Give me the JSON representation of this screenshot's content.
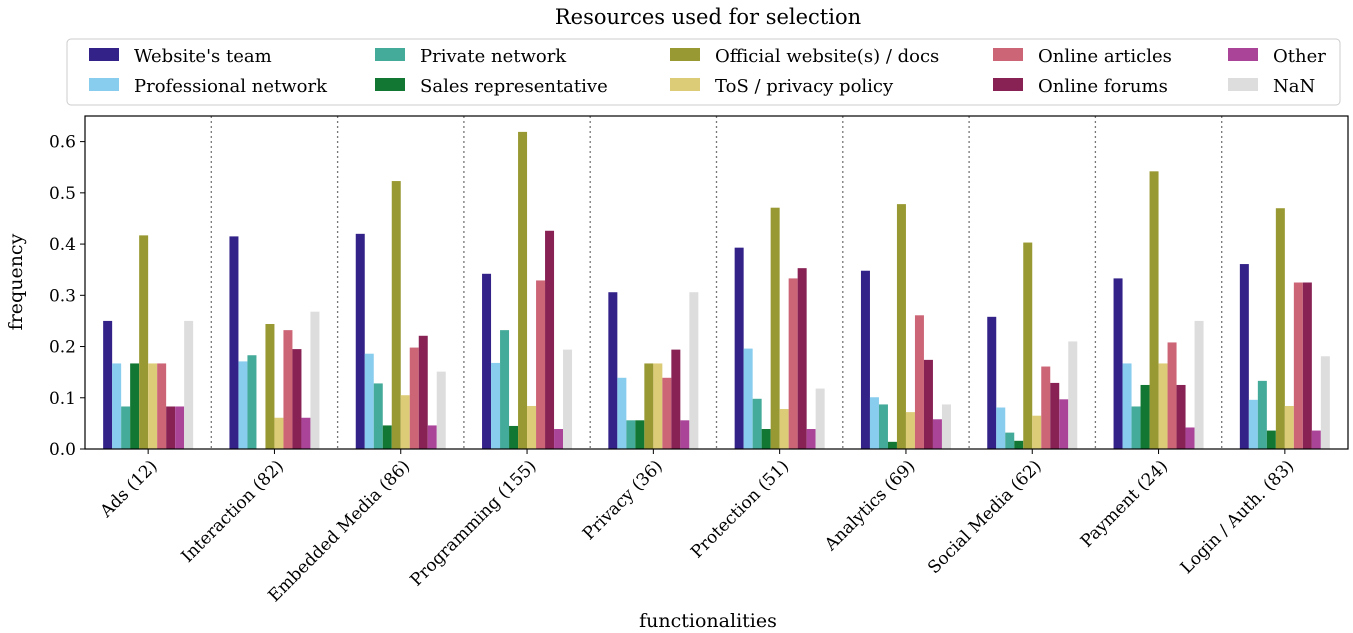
{
  "chart_data": {
    "type": "bar",
    "title": "Resources used for selection",
    "xlabel": "functionalities",
    "ylabel": "frequency",
    "ylim": [
      0,
      0.65
    ],
    "yticks": [
      "0.0",
      "0.1",
      "0.2",
      "0.3",
      "0.4",
      "0.5",
      "0.6"
    ],
    "grid": false,
    "legend_position": "top",
    "categories": [
      "Ads (12)",
      "Interaction (82)",
      "Embedded Media (86)",
      "Programming (155)",
      "Privacy (36)",
      "Protection (51)",
      "Analytics (69)",
      "Social Media (62)",
      "Payment (24)",
      "Login / Auth. (83)"
    ],
    "series": [
      {
        "name": "Website's team",
        "color": "#332288",
        "values": [
          0.25,
          0.415,
          0.42,
          0.342,
          0.306,
          0.393,
          0.348,
          0.258,
          0.333,
          0.361
        ]
      },
      {
        "name": "Professional network",
        "color": "#88ccee",
        "values": [
          0.167,
          0.171,
          0.186,
          0.168,
          0.139,
          0.196,
          0.101,
          0.081,
          0.167,
          0.096
        ]
      },
      {
        "name": "Private network",
        "color": "#44aa99",
        "values": [
          0.083,
          0.183,
          0.128,
          0.232,
          0.056,
          0.098,
          0.087,
          0.032,
          0.083,
          0.133
        ]
      },
      {
        "name": "Sales representative",
        "color": "#117733",
        "values": [
          0.167,
          0.0,
          0.046,
          0.045,
          0.056,
          0.039,
          0.014,
          0.016,
          0.125,
          0.036
        ]
      },
      {
        "name": "Official website(s) / docs",
        "color": "#999933",
        "values": [
          0.417,
          0.244,
          0.523,
          0.619,
          0.167,
          0.471,
          0.478,
          0.403,
          0.542,
          0.47
        ]
      },
      {
        "name": "ToS / privacy policy",
        "color": "#ddcc77",
        "values": [
          0.167,
          0.061,
          0.105,
          0.084,
          0.167,
          0.078,
          0.072,
          0.065,
          0.167,
          0.084
        ]
      },
      {
        "name": "Online articles",
        "color": "#cc6677",
        "values": [
          0.167,
          0.232,
          0.198,
          0.329,
          0.139,
          0.333,
          0.261,
          0.161,
          0.208,
          0.325
        ]
      },
      {
        "name": "Online forums",
        "color": "#882255",
        "values": [
          0.083,
          0.195,
          0.221,
          0.426,
          0.194,
          0.353,
          0.174,
          0.129,
          0.125,
          0.325
        ]
      },
      {
        "name": "Other",
        "color": "#aa4499",
        "values": [
          0.083,
          0.061,
          0.046,
          0.039,
          0.056,
          0.039,
          0.058,
          0.097,
          0.042,
          0.036
        ]
      },
      {
        "name": "NaN",
        "color": "#dddddd",
        "values": [
          0.25,
          0.268,
          0.151,
          0.194,
          0.306,
          0.118,
          0.087,
          0.21,
          0.25,
          0.181
        ]
      }
    ]
  }
}
